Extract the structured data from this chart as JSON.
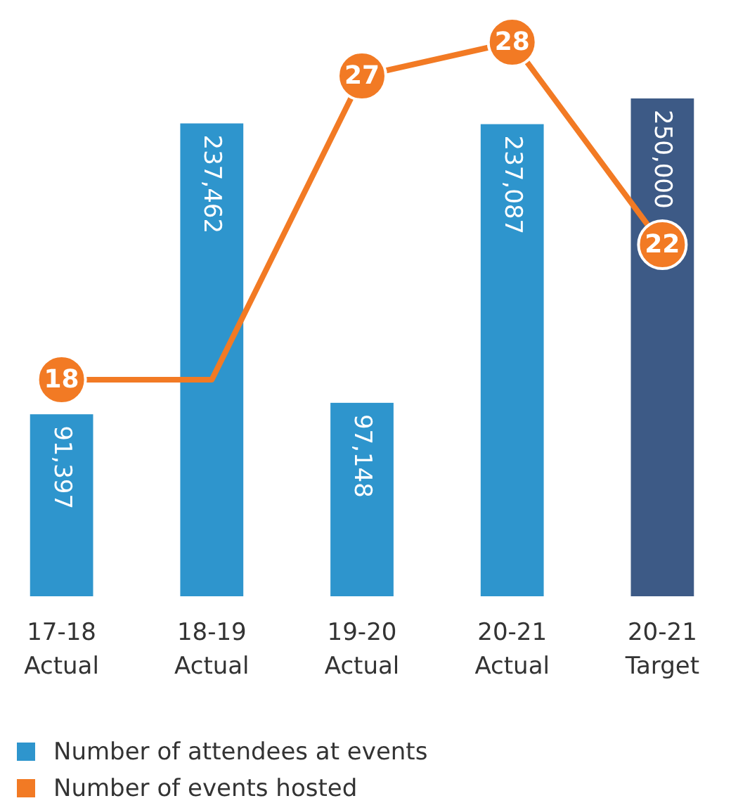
{
  "chart_data": {
    "type": "bar",
    "categories": [
      "17-18 Actual",
      "18-19 Actual",
      "19-20 Actual",
      "20-21 Actual",
      "20-21 Target"
    ],
    "series": [
      {
        "name": "Number of attendees at events",
        "color": "#2e95cd",
        "colors": [
          "#2e95cd",
          "#2e95cd",
          "#2e95cd",
          "#2e95cd",
          "#3d5a86"
        ],
        "values": [
          91397,
          237462,
          97148,
          237087,
          250000
        ],
        "value_labels": [
          "91,397",
          "237,462",
          "97,148",
          "237,087",
          "250,000"
        ]
      },
      {
        "name": "Number of events hosted",
        "type": "line",
        "axis": "y2",
        "color": "#f27a24",
        "values": [
          18,
          18,
          27,
          28,
          22
        ],
        "value_labels": [
          "18",
          null,
          "27",
          "28",
          "22"
        ]
      }
    ],
    "legend": "bottom",
    "marker": "circle",
    "line_style": "solid",
    "tick_labels": "x"
  }
}
